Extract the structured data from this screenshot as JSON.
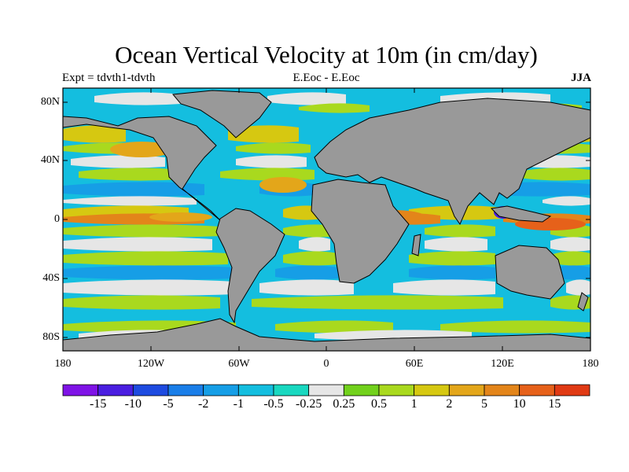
{
  "title": "Ocean Vertical Velocity at 10m (in cm/day)",
  "subtitle_left": "Expt = tdvth1-tdvth",
  "subtitle_center": "E.Eoc - E.Eoc",
  "subtitle_right": "JJA",
  "lat_labels": [
    "80N",
    "40N",
    "0",
    "40S",
    "80S"
  ],
  "lon_labels": [
    "180",
    "120W",
    "60W",
    "0",
    "60E",
    "120E",
    "180"
  ],
  "colorbar": {
    "labels": [
      "-15",
      "-10",
      "-5",
      "-2",
      "-1",
      "-0.5",
      "-0.25",
      "0.25",
      "0.5",
      "1",
      "2",
      "5",
      "10",
      "15"
    ],
    "colors": [
      "#7f13e6",
      "#4a1ee0",
      "#1e4be0",
      "#1a7ee8",
      "#169ee6",
      "#14bedf",
      "#19d8c0",
      "#e6e6e6",
      "#72d11c",
      "#a9d91e",
      "#d6c811",
      "#e3a61a",
      "#e3851a",
      "#e6611a",
      "#e03a14"
    ]
  },
  "colors": {
    "land": "#999999",
    "neutral": "#e6e6e6"
  }
}
